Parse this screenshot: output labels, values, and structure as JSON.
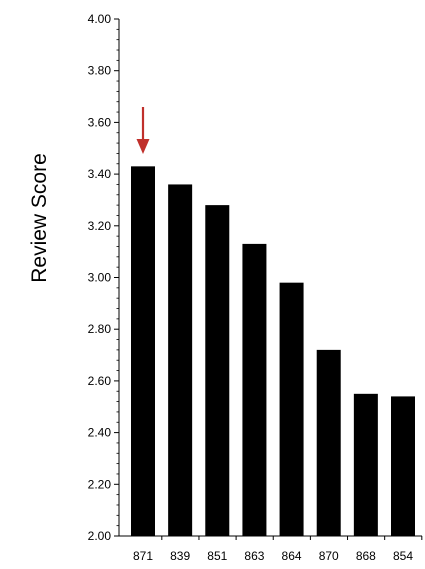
{
  "chart_data": {
    "type": "bar",
    "title": "",
    "xlabel": "",
    "ylabel": "Review Score",
    "ylim": [
      2.0,
      4.0
    ],
    "y_ticks": [
      "4.00",
      "3.80",
      "3.60",
      "3.40",
      "3.20",
      "3.00",
      "2.80",
      "2.60",
      "2.40",
      "2.20",
      "2.00"
    ],
    "categories": [
      "871",
      "839",
      "851",
      "863",
      "864",
      "870",
      "868",
      "854"
    ],
    "values": [
      3.43,
      3.36,
      3.28,
      3.13,
      2.98,
      2.72,
      2.55,
      2.54
    ],
    "grid": false,
    "bar_color": "#000000",
    "annotation": {
      "kind": "arrow",
      "target_category": "871",
      "color": "#c0302b"
    }
  }
}
